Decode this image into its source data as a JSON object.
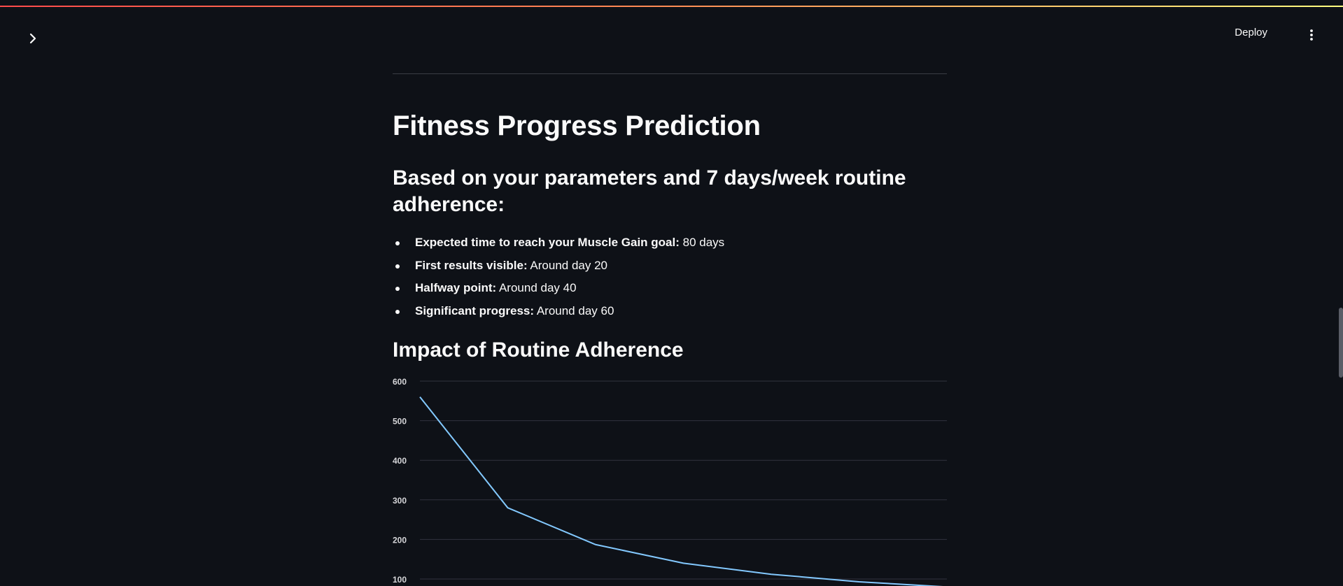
{
  "header": {
    "deploy_label": "Deploy",
    "sidebar_toggle_icon": "chevron-right-icon",
    "menu_icon": "vertical-ellipsis-icon"
  },
  "colors": {
    "background": "#0e1117",
    "text": "#fafafa",
    "line": "#83c9ff",
    "grid": "#31333f",
    "accent_gradient": [
      "#ff4b4b",
      "#fffd80"
    ]
  },
  "main": {
    "title": "Fitness Progress Prediction",
    "subtitle": "Based on your parameters and 7 days/week routine adherence:",
    "bullets": [
      {
        "label": "Expected time to reach your Muscle Gain goal:",
        "value": " 80 days"
      },
      {
        "label": "First results visible:",
        "value": " Around day 20"
      },
      {
        "label": "Halfway point:",
        "value": " Around day 40"
      },
      {
        "label": "Significant progress:",
        "value": " Around day 60"
      }
    ],
    "chart_title": "Impact of Routine Adherence"
  },
  "chart_data": {
    "type": "line",
    "x": [
      1,
      2,
      3,
      4,
      5,
      6,
      7
    ],
    "series": [
      {
        "values": [
          560,
          280,
          187,
          140,
          112,
          93,
          80
        ]
      }
    ],
    "ylim": [
      100,
      600
    ],
    "yticks": [
      100,
      200,
      300,
      400,
      500,
      600
    ],
    "grid": true
  }
}
